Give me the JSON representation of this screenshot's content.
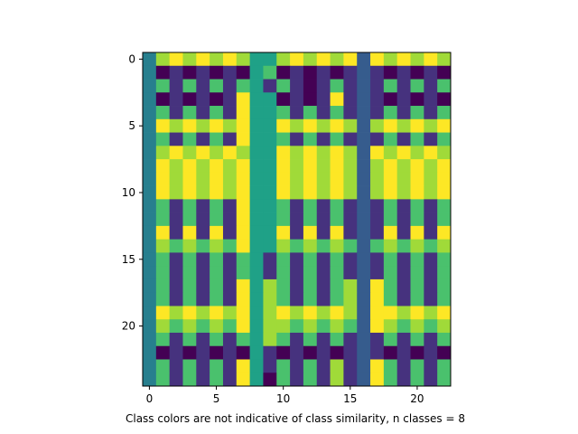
{
  "chart_data": {
    "type": "heatmap",
    "title": "",
    "xlabel": "Class colors are not indicative of class similarity, n classes = 8",
    "ylabel": "",
    "xlim": [
      -0.5,
      22.5
    ],
    "ylim": [
      24.5,
      -0.5
    ],
    "x_ticks": [
      0,
      5,
      10,
      15,
      20
    ],
    "y_ticks": [
      0,
      5,
      10,
      15,
      20
    ],
    "grid": false,
    "colormap": "viridis",
    "classes": 8,
    "class_colors": [
      "#440154",
      "#46327e",
      "#365c8d",
      "#277f8e",
      "#1fa187",
      "#4ac16d",
      "#a0da39",
      "#fde725"
    ],
    "n_rows": 25,
    "n_cols": 23,
    "column_classes": [
      3,
      7,
      7,
      7,
      7,
      7,
      7,
      7,
      4,
      4,
      7,
      7,
      7,
      7,
      7,
      7,
      2,
      7,
      7,
      7,
      7,
      7,
      7
    ],
    "values": [
      [
        3,
        6,
        7,
        6,
        7,
        6,
        7,
        6,
        4,
        4,
        6,
        7,
        6,
        7,
        6,
        7,
        2,
        7,
        6,
        7,
        6,
        7,
        6
      ],
      [
        3,
        0,
        1,
        0,
        1,
        0,
        1,
        0,
        4,
        5,
        0,
        1,
        0,
        1,
        0,
        1,
        2,
        1,
        0,
        1,
        0,
        1,
        0
      ],
      [
        3,
        5,
        1,
        5,
        1,
        5,
        1,
        5,
        4,
        1,
        5,
        1,
        0,
        1,
        5,
        1,
        2,
        1,
        5,
        1,
        5,
        1,
        5
      ],
      [
        3,
        0,
        1,
        0,
        1,
        0,
        1,
        7,
        4,
        4,
        0,
        1,
        0,
        1,
        7,
        1,
        2,
        1,
        0,
        1,
        0,
        1,
        0
      ],
      [
        3,
        5,
        1,
        5,
        1,
        5,
        1,
        7,
        4,
        4,
        5,
        1,
        5,
        1,
        5,
        1,
        2,
        1,
        5,
        1,
        5,
        1,
        5
      ],
      [
        3,
        7,
        6,
        7,
        6,
        7,
        6,
        7,
        4,
        4,
        7,
        6,
        7,
        6,
        7,
        6,
        2,
        6,
        7,
        6,
        7,
        6,
        7
      ],
      [
        3,
        5,
        1,
        5,
        1,
        5,
        1,
        7,
        4,
        4,
        5,
        1,
        5,
        1,
        5,
        1,
        2,
        1,
        5,
        1,
        5,
        1,
        5
      ],
      [
        3,
        6,
        7,
        6,
        7,
        6,
        7,
        6,
        4,
        4,
        7,
        6,
        7,
        6,
        7,
        6,
        2,
        7,
        6,
        7,
        6,
        7,
        6
      ],
      [
        3,
        7,
        6,
        7,
        6,
        7,
        6,
        7,
        4,
        4,
        7,
        6,
        7,
        6,
        7,
        6,
        2,
        6,
        7,
        6,
        7,
        6,
        7
      ],
      [
        3,
        7,
        6,
        7,
        6,
        7,
        6,
        7,
        4,
        4,
        7,
        6,
        7,
        6,
        7,
        6,
        2,
        6,
        7,
        6,
        7,
        6,
        7
      ],
      [
        3,
        7,
        6,
        7,
        6,
        7,
        6,
        7,
        4,
        4,
        7,
        6,
        7,
        6,
        7,
        6,
        2,
        6,
        7,
        6,
        7,
        6,
        7
      ],
      [
        3,
        5,
        1,
        5,
        1,
        5,
        1,
        7,
        4,
        4,
        5,
        1,
        5,
        1,
        5,
        1,
        2,
        1,
        5,
        1,
        5,
        1,
        5
      ],
      [
        3,
        5,
        1,
        5,
        1,
        5,
        1,
        7,
        4,
        4,
        5,
        1,
        5,
        1,
        5,
        1,
        2,
        1,
        5,
        1,
        5,
        1,
        5
      ],
      [
        3,
        7,
        1,
        7,
        1,
        7,
        1,
        7,
        4,
        4,
        7,
        1,
        7,
        1,
        7,
        1,
        2,
        1,
        7,
        1,
        7,
        1,
        7
      ],
      [
        3,
        6,
        5,
        6,
        5,
        6,
        5,
        7,
        4,
        4,
        6,
        5,
        6,
        5,
        6,
        5,
        2,
        5,
        6,
        5,
        6,
        5,
        6
      ],
      [
        3,
        5,
        1,
        5,
        1,
        5,
        1,
        5,
        4,
        1,
        5,
        1,
        5,
        1,
        5,
        1,
        2,
        1,
        5,
        1,
        5,
        1,
        5
      ],
      [
        3,
        5,
        1,
        5,
        1,
        5,
        1,
        5,
        4,
        1,
        5,
        1,
        5,
        1,
        5,
        1,
        2,
        1,
        5,
        1,
        5,
        1,
        5
      ],
      [
        3,
        5,
        1,
        5,
        1,
        5,
        1,
        7,
        4,
        6,
        5,
        1,
        5,
        1,
        5,
        6,
        2,
        7,
        5,
        1,
        5,
        1,
        5
      ],
      [
        3,
        5,
        1,
        5,
        1,
        5,
        1,
        7,
        4,
        6,
        5,
        1,
        5,
        1,
        5,
        6,
        2,
        7,
        5,
        1,
        5,
        1,
        5
      ],
      [
        3,
        7,
        6,
        7,
        6,
        7,
        6,
        7,
        4,
        6,
        7,
        6,
        7,
        6,
        7,
        6,
        2,
        7,
        7,
        6,
        7,
        6,
        7
      ],
      [
        3,
        6,
        5,
        6,
        5,
        6,
        5,
        7,
        4,
        6,
        6,
        5,
        6,
        5,
        6,
        5,
        2,
        7,
        6,
        5,
        6,
        5,
        6
      ],
      [
        3,
        5,
        1,
        5,
        1,
        5,
        1,
        5,
        4,
        6,
        5,
        1,
        5,
        1,
        5,
        1,
        2,
        1,
        5,
        1,
        5,
        1,
        5
      ],
      [
        3,
        0,
        1,
        0,
        1,
        0,
        1,
        0,
        4,
        1,
        0,
        1,
        0,
        1,
        0,
        1,
        2,
        1,
        0,
        1,
        0,
        1,
        0
      ],
      [
        3,
        5,
        1,
        5,
        1,
        5,
        1,
        7,
        4,
        1,
        5,
        1,
        5,
        1,
        6,
        1,
        2,
        7,
        5,
        1,
        5,
        1,
        5
      ],
      [
        3,
        5,
        1,
        5,
        1,
        5,
        1,
        7,
        4,
        0,
        5,
        1,
        5,
        1,
        6,
        1,
        2,
        7,
        5,
        1,
        5,
        1,
        5
      ]
    ]
  }
}
